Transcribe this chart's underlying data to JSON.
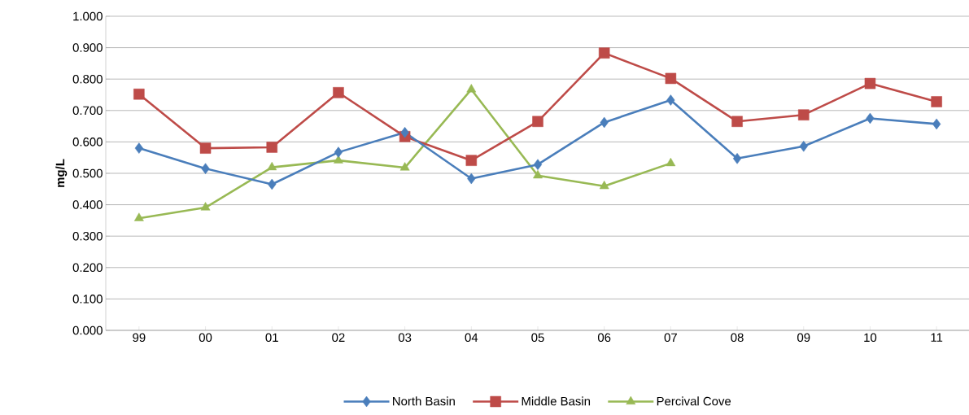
{
  "chart_data": {
    "type": "line",
    "ylabel": "mg/L",
    "categories": [
      "99",
      "00",
      "01",
      "02",
      "03",
      "04",
      "05",
      "06",
      "07",
      "08",
      "09",
      "10",
      "11"
    ],
    "series": [
      {
        "name": "North Basin",
        "color": "#4a7ebb",
        "marker": "diamond",
        "values": [
          0.58,
          0.515,
          0.465,
          0.567,
          0.63,
          0.483,
          0.528,
          0.662,
          0.733,
          0.547,
          0.586,
          0.675,
          0.657
        ]
      },
      {
        "name": "Middle Basin",
        "color": "#be4b48",
        "marker": "square",
        "values": [
          0.752,
          0.58,
          0.583,
          0.757,
          0.617,
          0.541,
          0.665,
          0.883,
          0.802,
          0.665,
          0.686,
          0.786,
          0.728
        ]
      },
      {
        "name": "Percival Cove",
        "color": "#98b954",
        "marker": "triangle",
        "values": [
          0.357,
          0.391,
          0.519,
          0.541,
          0.518,
          0.767,
          0.493,
          0.459,
          0.532,
          null,
          null,
          null,
          null
        ]
      }
    ],
    "ylim": [
      0,
      1
    ],
    "yticks": [
      {
        "value": 0,
        "label": "0.000"
      },
      {
        "value": 0.1,
        "label": "0.100"
      },
      {
        "value": 0.2,
        "label": "0.200"
      },
      {
        "value": 0.3,
        "label": "0.300"
      },
      {
        "value": 0.4,
        "label": "0.400"
      },
      {
        "value": 0.5,
        "label": "0.500"
      },
      {
        "value": 0.6,
        "label": "0.600"
      },
      {
        "value": 0.7,
        "label": "0.700"
      },
      {
        "value": 0.8,
        "label": "0.800"
      },
      {
        "value": 0.9,
        "label": "0.900"
      },
      {
        "value": 1,
        "label": "1.000"
      }
    ],
    "grid": "y",
    "legend": "bottom"
  }
}
